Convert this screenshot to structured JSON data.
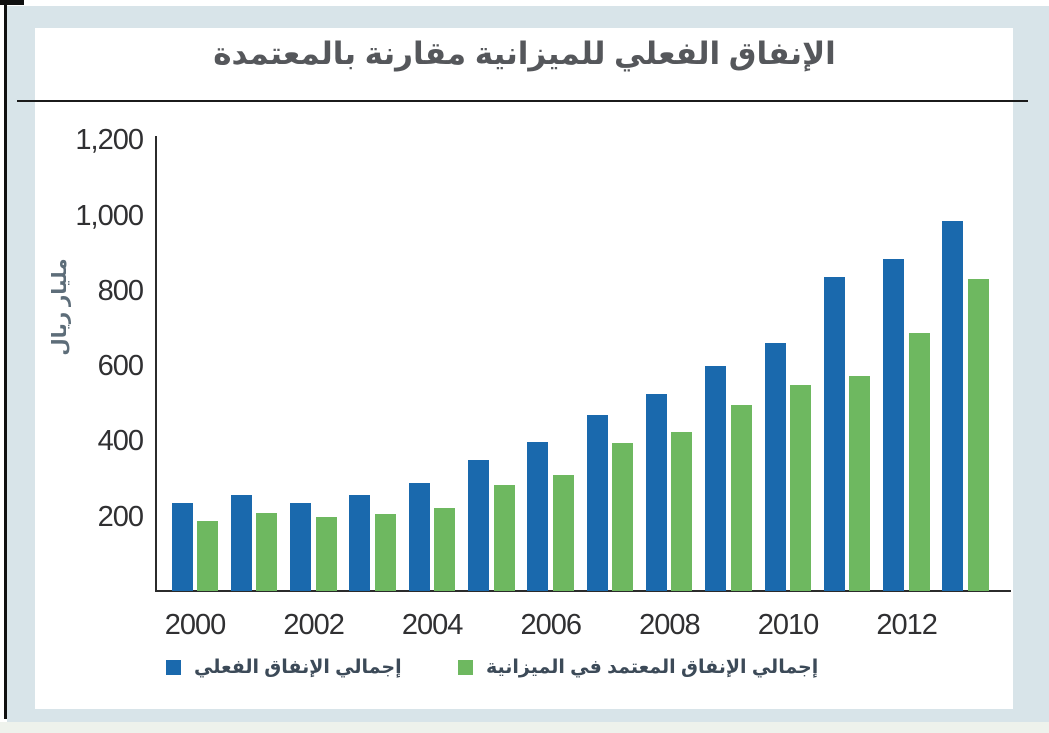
{
  "title": "الإنفاق الفعلي للميزانية مقارنة بالمعتمدة",
  "colors": {
    "actual_bar": "#1a69ad",
    "approved_bar": "#6eb860",
    "background": "#d8e4e9",
    "panel": "#ffffff",
    "title_text": "#55575b",
    "legend_text": "#3c4a58"
  },
  "y_axis": {
    "unit_label": "مليار ريال",
    "ticks": [
      {
        "label": "1,200",
        "value": 1200
      },
      {
        "label": "1,000",
        "value": 1000
      },
      {
        "label": "800",
        "value": 800
      },
      {
        "label": "600",
        "value": 600
      },
      {
        "label": "400",
        "value": 400
      },
      {
        "label": "200",
        "value": 200
      }
    ]
  },
  "x_axis": {
    "ticks": [
      "2000",
      "2002",
      "2004",
      "2006",
      "2008",
      "2010",
      "2012"
    ]
  },
  "legend": [
    {
      "label": "إجمالي الإنفاق الفعلي",
      "color": "#1a69ad"
    },
    {
      "label": "إجمالي الإنفاق المعتمد في الميزانية",
      "color": "#6eb860"
    }
  ],
  "chart_data": {
    "type": "bar",
    "title": "الإنفاق الفعلي للميزانية مقارنة بالمعتمدة",
    "xlabel": "",
    "ylabel": "مليار ريال",
    "ylim": [
      0,
      1200
    ],
    "grid": false,
    "legend_position": "bottom",
    "categories": [
      2000,
      2001,
      2002,
      2003,
      2004,
      2005,
      2006,
      2007,
      2008,
      2009,
      2010,
      2011,
      2012,
      2013
    ],
    "series": [
      {
        "name": "إجمالي الإنفاق الفعلي",
        "color": "#1a69ad",
        "values": [
          235,
          255,
          234,
          256,
          286,
          347,
          397,
          467,
          523,
          599,
          659,
          833,
          883,
          984
        ]
      },
      {
        "name": "إجمالي الإنفاق المعتمد في الميزانية",
        "color": "#6eb860",
        "values": [
          185,
          206,
          196,
          205,
          220,
          281,
          309,
          393,
          422,
          493,
          546,
          571,
          686,
          829
        ]
      }
    ]
  }
}
